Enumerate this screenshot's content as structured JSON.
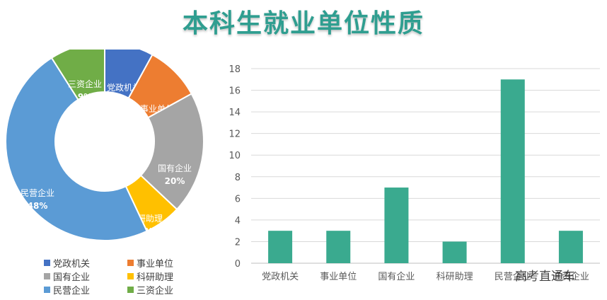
{
  "title": "本科生就业单位性质",
  "watermark": "高考直通车",
  "colors": {
    "title": "#2f9e90",
    "bar": "#3aaa8f"
  },
  "chart_data": [
    {
      "type": "pie",
      "donut": true,
      "legend_position": "bottom",
      "slices": [
        {
          "label": "党政机关",
          "value": 8,
          "value_label": "8%",
          "color": "#4472c4"
        },
        {
          "label": "事业单位",
          "value": 9,
          "value_label": "9%",
          "color": "#ed7d31"
        },
        {
          "label": "国有企业",
          "value": 20,
          "value_label": "20%",
          "color": "#a5a5a5"
        },
        {
          "label": "科研助理",
          "value": 6,
          "value_label": "6%",
          "color": "#ffc000"
        },
        {
          "label": "民营企业",
          "value": 48,
          "value_label": "48%",
          "color": "#5b9bd5"
        },
        {
          "label": "三资企业",
          "value": 9,
          "value_label": "9%",
          "color": "#70ad47"
        }
      ]
    },
    {
      "type": "bar",
      "categories": [
        "党政机关",
        "事业单位",
        "国有企业",
        "科研助理",
        "民营企业",
        "三资企业"
      ],
      "values": [
        3,
        3,
        7,
        2,
        17,
        3
      ],
      "ylim": [
        0,
        18
      ],
      "yticks": [
        0,
        2,
        4,
        6,
        8,
        10,
        12,
        14,
        16,
        18
      ],
      "grid": true
    }
  ]
}
